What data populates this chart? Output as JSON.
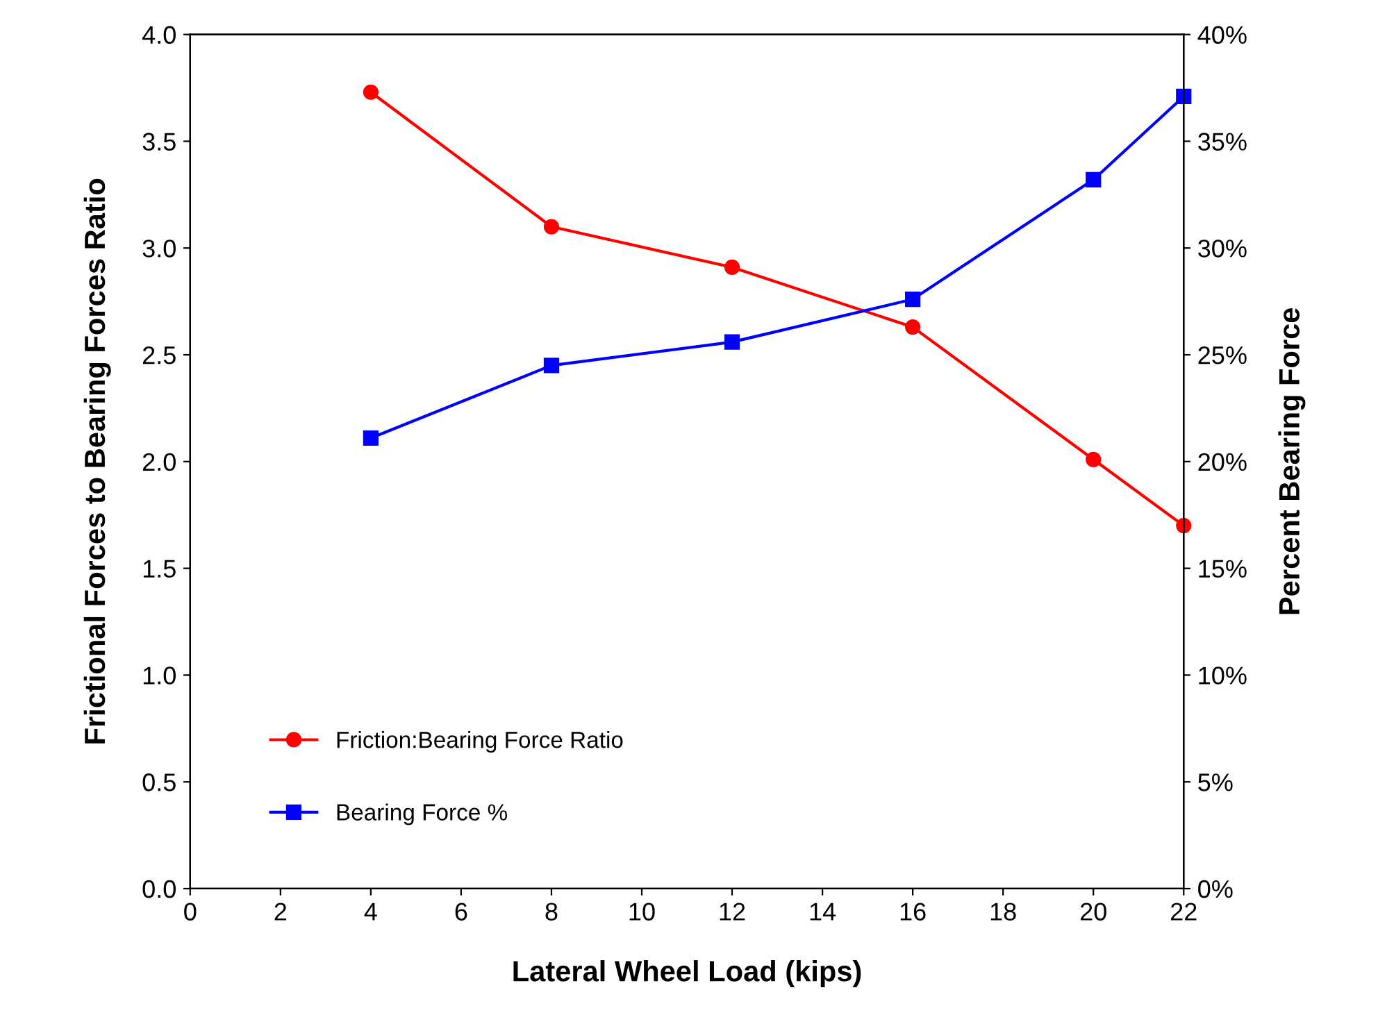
{
  "chart_data": {
    "type": "line",
    "xlabel": "Lateral Wheel Load (kips)",
    "ylabel": "Frictional Forces to Bearing Forces Ratio",
    "y2label": "Percent Bearing Force",
    "xlim": [
      0,
      22
    ],
    "xticks": [
      0,
      2,
      4,
      6,
      8,
      10,
      12,
      14,
      16,
      18,
      20,
      22
    ],
    "ylim": [
      0,
      4
    ],
    "yticks": [
      {
        "value": 0,
        "label": "0.0"
      },
      {
        "value": 0.5,
        "label": "0.5"
      },
      {
        "value": 1,
        "label": "1.0"
      },
      {
        "value": 1.5,
        "label": "1.5"
      },
      {
        "value": 2,
        "label": "2.0"
      },
      {
        "value": 2.5,
        "label": "2.5"
      },
      {
        "value": 3,
        "label": "3.0"
      },
      {
        "value": 3.5,
        "label": "3.5"
      },
      {
        "value": 4,
        "label": "4.0"
      }
    ],
    "y2lim": [
      0,
      40
    ],
    "y2ticks": [
      {
        "value": 0,
        "label": "0%"
      },
      {
        "value": 5,
        "label": "5%"
      },
      {
        "value": 10,
        "label": "10%"
      },
      {
        "value": 15,
        "label": "15%"
      },
      {
        "value": 20,
        "label": "20%"
      },
      {
        "value": 25,
        "label": "25%"
      },
      {
        "value": 30,
        "label": "30%"
      },
      {
        "value": 35,
        "label": "35%"
      },
      {
        "value": 40,
        "label": "40%"
      }
    ],
    "grid": false,
    "legend": "bottom left",
    "line_style": "solid",
    "series": [
      {
        "name": "Friction:Bearing Force Ratio",
        "color": "#ff0000",
        "marker": "circle",
        "x": [
          4,
          8,
          12,
          16,
          20,
          22
        ],
        "values": [
          3.73,
          3.1,
          2.91,
          2.63,
          2.01,
          1.7
        ]
      },
      {
        "name": "Bearing Force %",
        "color": "#0000ff",
        "marker": "square",
        "axis": "y2",
        "x": [
          4,
          8,
          12,
          16,
          20,
          22
        ],
        "values": [
          21.1,
          24.5,
          25.6,
          27.6,
          33.2,
          37.1
        ]
      }
    ]
  }
}
